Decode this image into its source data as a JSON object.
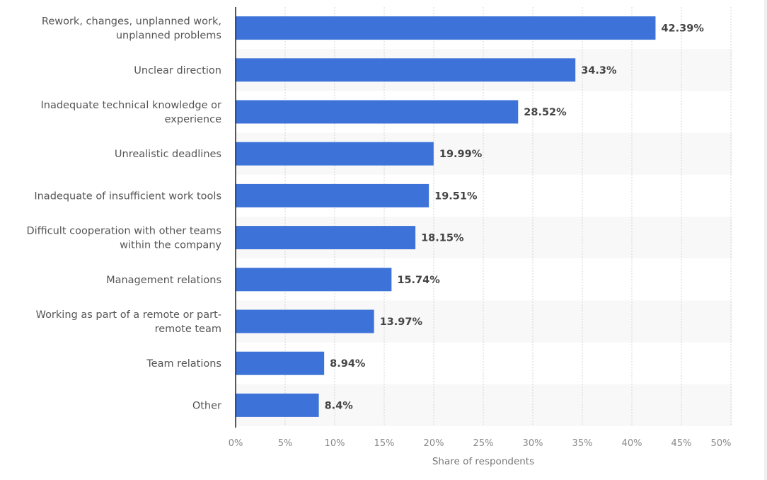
{
  "chart_data": {
    "type": "bar",
    "orientation": "horizontal",
    "categories": [
      [
        "Rework, changes, unplanned work,",
        "unplanned problems"
      ],
      [
        "Unclear direction"
      ],
      [
        "Inadequate technical knowledge or",
        "experience"
      ],
      [
        "Unrealistic deadlines"
      ],
      [
        "Inadequate of insufficient work tools"
      ],
      [
        "Difficult cooperation with other teams",
        "within the company"
      ],
      [
        "Management relations"
      ],
      [
        "Working as part of a remote or part-",
        "remote team"
      ],
      [
        "Team relations"
      ],
      [
        "Other"
      ]
    ],
    "values": [
      42.39,
      34.3,
      28.52,
      19.99,
      19.51,
      18.15,
      15.74,
      13.97,
      8.94,
      8.4
    ],
    "data_labels": [
      "42.39%",
      "34.3%",
      "28.52%",
      "19.99%",
      "19.51%",
      "18.15%",
      "15.74%",
      "13.97%",
      "8.94%",
      "8.4%"
    ],
    "xlabel": "Share of respondents",
    "ylabel": "",
    "xlim": [
      0,
      50
    ],
    "ticks": [
      0,
      5,
      10,
      15,
      20,
      25,
      30,
      35,
      40,
      45,
      50
    ],
    "tick_labels": [
      "0%",
      "5%",
      "10%",
      "15%",
      "20%",
      "25%",
      "30%",
      "35%",
      "40%",
      "45%",
      "50%"
    ],
    "grid": true,
    "alternating_row_bands": true,
    "bar_color": "#3d73d8",
    "band_color": "#f8f8f8"
  }
}
